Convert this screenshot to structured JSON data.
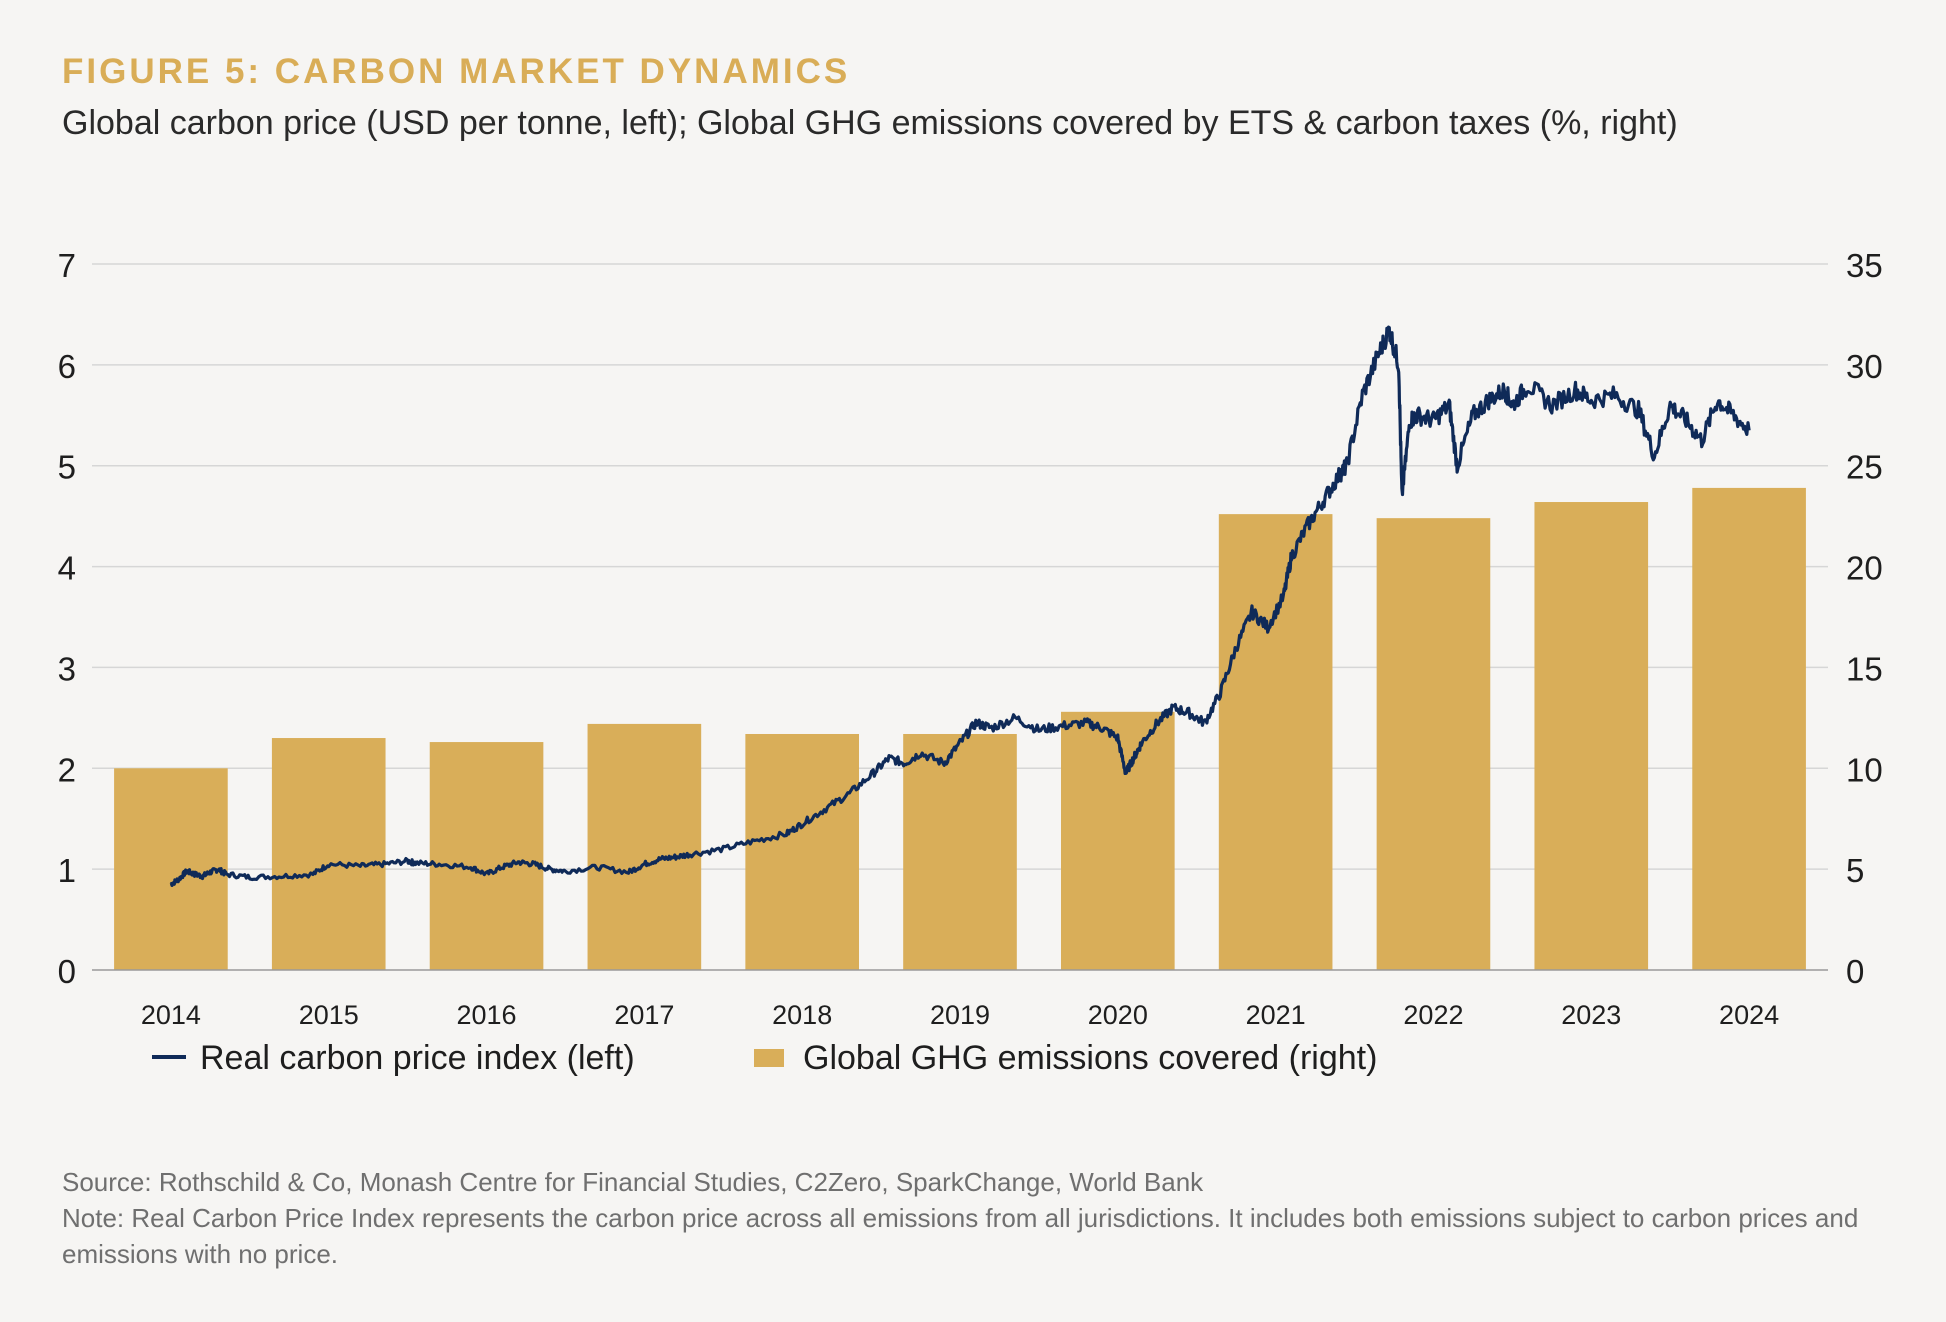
{
  "figure": {
    "title": "FIGURE 5: CARBON MARKET DYNAMICS",
    "subtitle": "Global carbon price (USD per tonne, left); Global GHG emissions covered by ETS & carbon taxes (%, right)"
  },
  "chart_data": {
    "type": "bar+line",
    "categories": [
      "2014",
      "2015",
      "2016",
      "2017",
      "2018",
      "2019",
      "2020",
      "2021",
      "2022",
      "2023",
      "2024"
    ],
    "left_axis": {
      "label": "",
      "ticks": [
        "0",
        "1",
        "2",
        "3",
        "4",
        "5",
        "6",
        "7"
      ],
      "range": [
        0,
        7
      ]
    },
    "right_axis": {
      "label": "",
      "ticks": [
        "0",
        "5",
        "10",
        "15",
        "20",
        "25",
        "30",
        "35"
      ],
      "range": [
        0,
        35
      ]
    },
    "grid": true,
    "series": [
      {
        "name": "Global GHG emissions covered (right)",
        "kind": "bar",
        "axis": "right",
        "color": "#d9ae59",
        "values": [
          10.0,
          11.5,
          11.3,
          12.2,
          11.7,
          11.7,
          12.8,
          22.6,
          22.4,
          23.2,
          23.9
        ]
      },
      {
        "name": "Real carbon price index (left)",
        "kind": "line",
        "axis": "left",
        "color": "#0f2a58",
        "x": [
          2014.0,
          2014.05,
          2014.1,
          2014.15,
          2014.2,
          2014.25,
          2014.3,
          2014.35,
          2014.5,
          2014.7,
          2014.9,
          2015.0,
          2015.2,
          2015.35,
          2015.5,
          2015.55,
          2015.7,
          2015.9,
          2016.0,
          2016.1,
          2016.2,
          2016.3,
          2016.4,
          2016.5,
          2016.7,
          2016.9,
          2017.0,
          2017.1,
          2017.2,
          2017.3,
          2017.5,
          2017.7,
          2017.9,
          2018.0,
          2018.15,
          2018.3,
          2018.45,
          2018.55,
          2018.65,
          2018.75,
          2018.9,
          2019.0,
          2019.1,
          2019.2,
          2019.35,
          2019.5,
          2019.65,
          2019.8,
          2019.9,
          2020.0,
          2020.05,
          2020.1,
          2020.15,
          2020.25,
          2020.35,
          2020.45,
          2020.55,
          2020.65,
          2020.75,
          2020.85,
          2020.95,
          2021.05,
          2021.1,
          2021.2,
          2021.3,
          2021.4,
          2021.45,
          2021.55,
          2021.65,
          2021.72,
          2021.78,
          2021.8,
          2021.85,
          2021.9,
          2022.0,
          2022.1,
          2022.15,
          2022.25,
          2022.35,
          2022.45,
          2022.5,
          2022.6,
          2022.75,
          2022.9,
          2023.0,
          2023.15,
          2023.3,
          2023.4,
          2023.5,
          2023.6,
          2023.7,
          2023.8,
          2023.9,
          2024.0
        ],
        "values": [
          0.85,
          0.9,
          0.98,
          0.95,
          0.93,
          0.97,
          1.0,
          0.95,
          0.92,
          0.93,
          0.95,
          1.05,
          1.03,
          1.05,
          1.08,
          1.06,
          1.05,
          1.02,
          0.95,
          1.02,
          1.07,
          1.05,
          1.0,
          0.98,
          1.02,
          0.97,
          1.05,
          1.1,
          1.12,
          1.15,
          1.2,
          1.28,
          1.35,
          1.45,
          1.6,
          1.75,
          1.95,
          2.1,
          2.05,
          2.15,
          2.05,
          2.25,
          2.45,
          2.4,
          2.5,
          2.38,
          2.42,
          2.45,
          2.4,
          2.3,
          1.95,
          2.1,
          2.25,
          2.45,
          2.6,
          2.55,
          2.45,
          2.75,
          3.2,
          3.55,
          3.4,
          3.7,
          4.1,
          4.4,
          4.65,
          4.9,
          5.0,
          5.7,
          6.1,
          6.35,
          6.0,
          4.7,
          5.45,
          5.5,
          5.45,
          5.6,
          5.0,
          5.5,
          5.65,
          5.75,
          5.6,
          5.8,
          5.6,
          5.75,
          5.65,
          5.7,
          5.55,
          5.1,
          5.6,
          5.45,
          5.25,
          5.65,
          5.5,
          5.35
        ]
      }
    ]
  },
  "legend": {
    "line_label": "Real carbon price index (left)",
    "bar_label": "Global GHG emissions covered (right)"
  },
  "source": {
    "line1": "Source: Rothschild & Co, Monash Centre for Financial Studies, C2Zero, SparkChange, World Bank",
    "line2": "Note: Real Carbon Price Index represents the carbon price across all emissions from all jurisdictions. It includes both emissions subject to carbon prices and emissions with no price."
  }
}
